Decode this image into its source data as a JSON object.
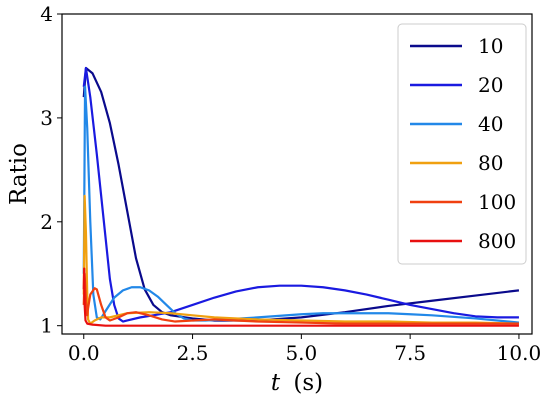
{
  "chart_data": {
    "type": "line",
    "title": "",
    "xlabel_italic": "t",
    "xlabel_unit": "(s)",
    "ylabel": "Ratio",
    "xlim": [
      -0.5,
      10.3
    ],
    "ylim": [
      0.92,
      4.0
    ],
    "xticks": [
      0.0,
      2.5,
      5.0,
      7.5,
      10.0
    ],
    "xtick_labels": [
      "0.0",
      "2.5",
      "5.0",
      "7.5",
      "10.0"
    ],
    "yticks": [
      1,
      2,
      3,
      4
    ],
    "ytick_labels": [
      "1",
      "2",
      "3",
      "4"
    ],
    "grid": false,
    "legend_position": "top-right",
    "series": [
      {
        "name": "10",
        "color": "#0a0a8c",
        "points": [
          [
            0.0,
            3.2
          ],
          [
            0.05,
            3.48
          ],
          [
            0.2,
            3.43
          ],
          [
            0.4,
            3.25
          ],
          [
            0.6,
            2.95
          ],
          [
            0.8,
            2.55
          ],
          [
            1.0,
            2.1
          ],
          [
            1.2,
            1.65
          ],
          [
            1.4,
            1.35
          ],
          [
            1.6,
            1.2
          ],
          [
            1.8,
            1.13
          ],
          [
            2.0,
            1.1
          ],
          [
            2.5,
            1.07
          ],
          [
            3.0,
            1.05
          ],
          [
            4.0,
            1.05
          ],
          [
            5.0,
            1.08
          ],
          [
            6.0,
            1.13
          ],
          [
            7.0,
            1.19
          ],
          [
            8.0,
            1.24
          ],
          [
            9.0,
            1.29
          ],
          [
            10.0,
            1.34
          ]
        ]
      },
      {
        "name": "20",
        "color": "#1a1ae0",
        "points": [
          [
            0.0,
            3.3
          ],
          [
            0.05,
            3.48
          ],
          [
            0.15,
            3.2
          ],
          [
            0.3,
            2.65
          ],
          [
            0.5,
            1.85
          ],
          [
            0.6,
            1.45
          ],
          [
            0.7,
            1.2
          ],
          [
            0.8,
            1.07
          ],
          [
            0.9,
            1.04
          ],
          [
            1.0,
            1.05
          ],
          [
            1.3,
            1.08
          ],
          [
            1.6,
            1.1
          ],
          [
            2.0,
            1.13
          ],
          [
            2.5,
            1.2
          ],
          [
            3.0,
            1.27
          ],
          [
            3.5,
            1.33
          ],
          [
            4.0,
            1.37
          ],
          [
            4.5,
            1.385
          ],
          [
            5.0,
            1.385
          ],
          [
            5.5,
            1.37
          ],
          [
            6.0,
            1.34
          ],
          [
            6.5,
            1.3
          ],
          [
            7.0,
            1.25
          ],
          [
            7.5,
            1.2
          ],
          [
            8.0,
            1.16
          ],
          [
            8.5,
            1.12
          ],
          [
            9.0,
            1.09
          ],
          [
            9.5,
            1.08
          ],
          [
            10.0,
            1.08
          ]
        ]
      },
      {
        "name": "40",
        "color": "#2288e8",
        "points": [
          [
            0.0,
            1.5
          ],
          [
            0.03,
            3.3
          ],
          [
            0.08,
            2.9
          ],
          [
            0.15,
            2.0
          ],
          [
            0.22,
            1.3
          ],
          [
            0.3,
            1.08
          ],
          [
            0.38,
            1.06
          ],
          [
            0.5,
            1.14
          ],
          [
            0.7,
            1.27
          ],
          [
            0.9,
            1.34
          ],
          [
            1.1,
            1.37
          ],
          [
            1.3,
            1.37
          ],
          [
            1.5,
            1.34
          ],
          [
            1.7,
            1.28
          ],
          [
            1.9,
            1.2
          ],
          [
            2.1,
            1.12
          ],
          [
            2.3,
            1.07
          ],
          [
            2.5,
            1.05
          ],
          [
            2.8,
            1.05
          ],
          [
            3.2,
            1.06
          ],
          [
            4.0,
            1.08
          ],
          [
            5.0,
            1.11
          ],
          [
            5.5,
            1.12
          ],
          [
            6.0,
            1.12
          ],
          [
            6.5,
            1.12
          ],
          [
            7.0,
            1.12
          ],
          [
            7.5,
            1.11
          ],
          [
            8.0,
            1.1
          ],
          [
            9.0,
            1.07
          ],
          [
            10.0,
            1.03
          ]
        ]
      },
      {
        "name": "80",
        "color": "#f0a010",
        "points": [
          [
            0.0,
            1.3
          ],
          [
            0.02,
            2.25
          ],
          [
            0.05,
            1.9
          ],
          [
            0.08,
            1.3
          ],
          [
            0.1,
            1.06
          ],
          [
            0.15,
            1.02
          ],
          [
            0.25,
            1.05
          ],
          [
            0.4,
            1.08
          ],
          [
            0.6,
            1.08
          ],
          [
            1.0,
            1.12
          ],
          [
            1.5,
            1.13
          ],
          [
            2.0,
            1.12
          ],
          [
            2.5,
            1.1
          ],
          [
            3.0,
            1.08
          ],
          [
            4.0,
            1.06
          ],
          [
            5.0,
            1.05
          ],
          [
            6.0,
            1.04
          ],
          [
            7.0,
            1.04
          ],
          [
            8.0,
            1.03
          ],
          [
            9.0,
            1.03
          ],
          [
            10.0,
            1.02
          ]
        ]
      },
      {
        "name": "100",
        "color": "#f04010",
        "points": [
          [
            0.0,
            1.2
          ],
          [
            0.02,
            1.5
          ],
          [
            0.05,
            1.25
          ],
          [
            0.08,
            1.1
          ],
          [
            0.1,
            1.17
          ],
          [
            0.15,
            1.3
          ],
          [
            0.25,
            1.36
          ],
          [
            0.3,
            1.35
          ],
          [
            0.4,
            1.2
          ],
          [
            0.5,
            1.08
          ],
          [
            0.6,
            1.05
          ],
          [
            0.8,
            1.08
          ],
          [
            1.0,
            1.12
          ],
          [
            1.2,
            1.13
          ],
          [
            1.5,
            1.1
          ],
          [
            1.8,
            1.06
          ],
          [
            2.1,
            1.04
          ],
          [
            2.5,
            1.05
          ],
          [
            3.0,
            1.06
          ],
          [
            3.5,
            1.05
          ],
          [
            4.0,
            1.04
          ],
          [
            5.0,
            1.03
          ],
          [
            6.0,
            1.02
          ],
          [
            7.0,
            1.02
          ],
          [
            8.0,
            1.02
          ],
          [
            9.0,
            1.02
          ],
          [
            10.0,
            1.02
          ]
        ]
      },
      {
        "name": "800",
        "color": "#e81010",
        "points": [
          [
            0.0,
            1.35
          ],
          [
            0.01,
            1.55
          ],
          [
            0.02,
            1.2
          ],
          [
            0.04,
            1.05
          ],
          [
            0.08,
            1.02
          ],
          [
            0.2,
            1.01
          ],
          [
            0.5,
            1.0
          ],
          [
            1.0,
            1.0
          ],
          [
            2.0,
            1.0
          ],
          [
            4.0,
            1.0
          ],
          [
            6.0,
            1.0
          ],
          [
            8.0,
            1.0
          ],
          [
            10.0,
            1.0
          ]
        ]
      }
    ]
  }
}
